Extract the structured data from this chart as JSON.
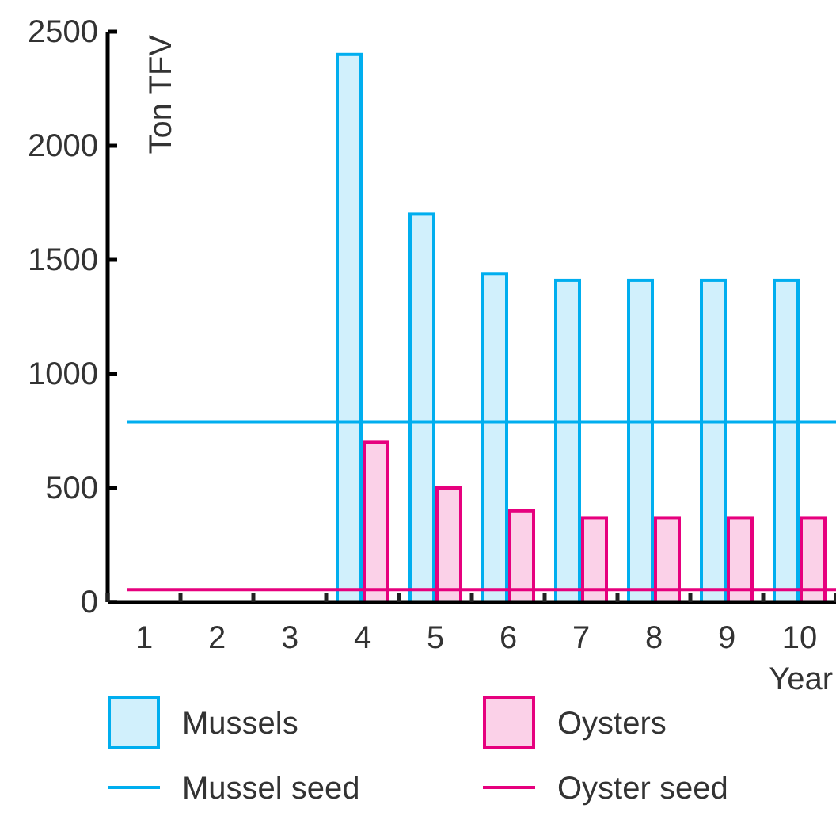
{
  "chart_data": {
    "type": "bar",
    "xlabel": "Year",
    "ylabel": "Ton TFV",
    "categories": [
      "1",
      "2",
      "3",
      "4",
      "5",
      "6",
      "7",
      "8",
      "9",
      "10"
    ],
    "series": [
      {
        "name": "Mussels",
        "color": "#00aeef",
        "values": [
          null,
          null,
          null,
          2400,
          1700,
          1440,
          1410,
          1410,
          1410,
          1410
        ]
      },
      {
        "name": "Oysters",
        "color": "#e6007e",
        "values": [
          null,
          null,
          null,
          700,
          500,
          400,
          370,
          370,
          370,
          370
        ]
      }
    ],
    "ref_lines": [
      {
        "axis": "y",
        "value": 790,
        "label": "Mussel seed",
        "color": "#00aeef"
      },
      {
        "axis": "y",
        "value": 55,
        "label": "Oyster seed",
        "color": "#e6007e"
      }
    ],
    "ylim": [
      0,
      2500
    ],
    "yticks": [
      0,
      500,
      1000,
      1500,
      2000,
      2500
    ],
    "legend": "bottom",
    "grid": false
  }
}
